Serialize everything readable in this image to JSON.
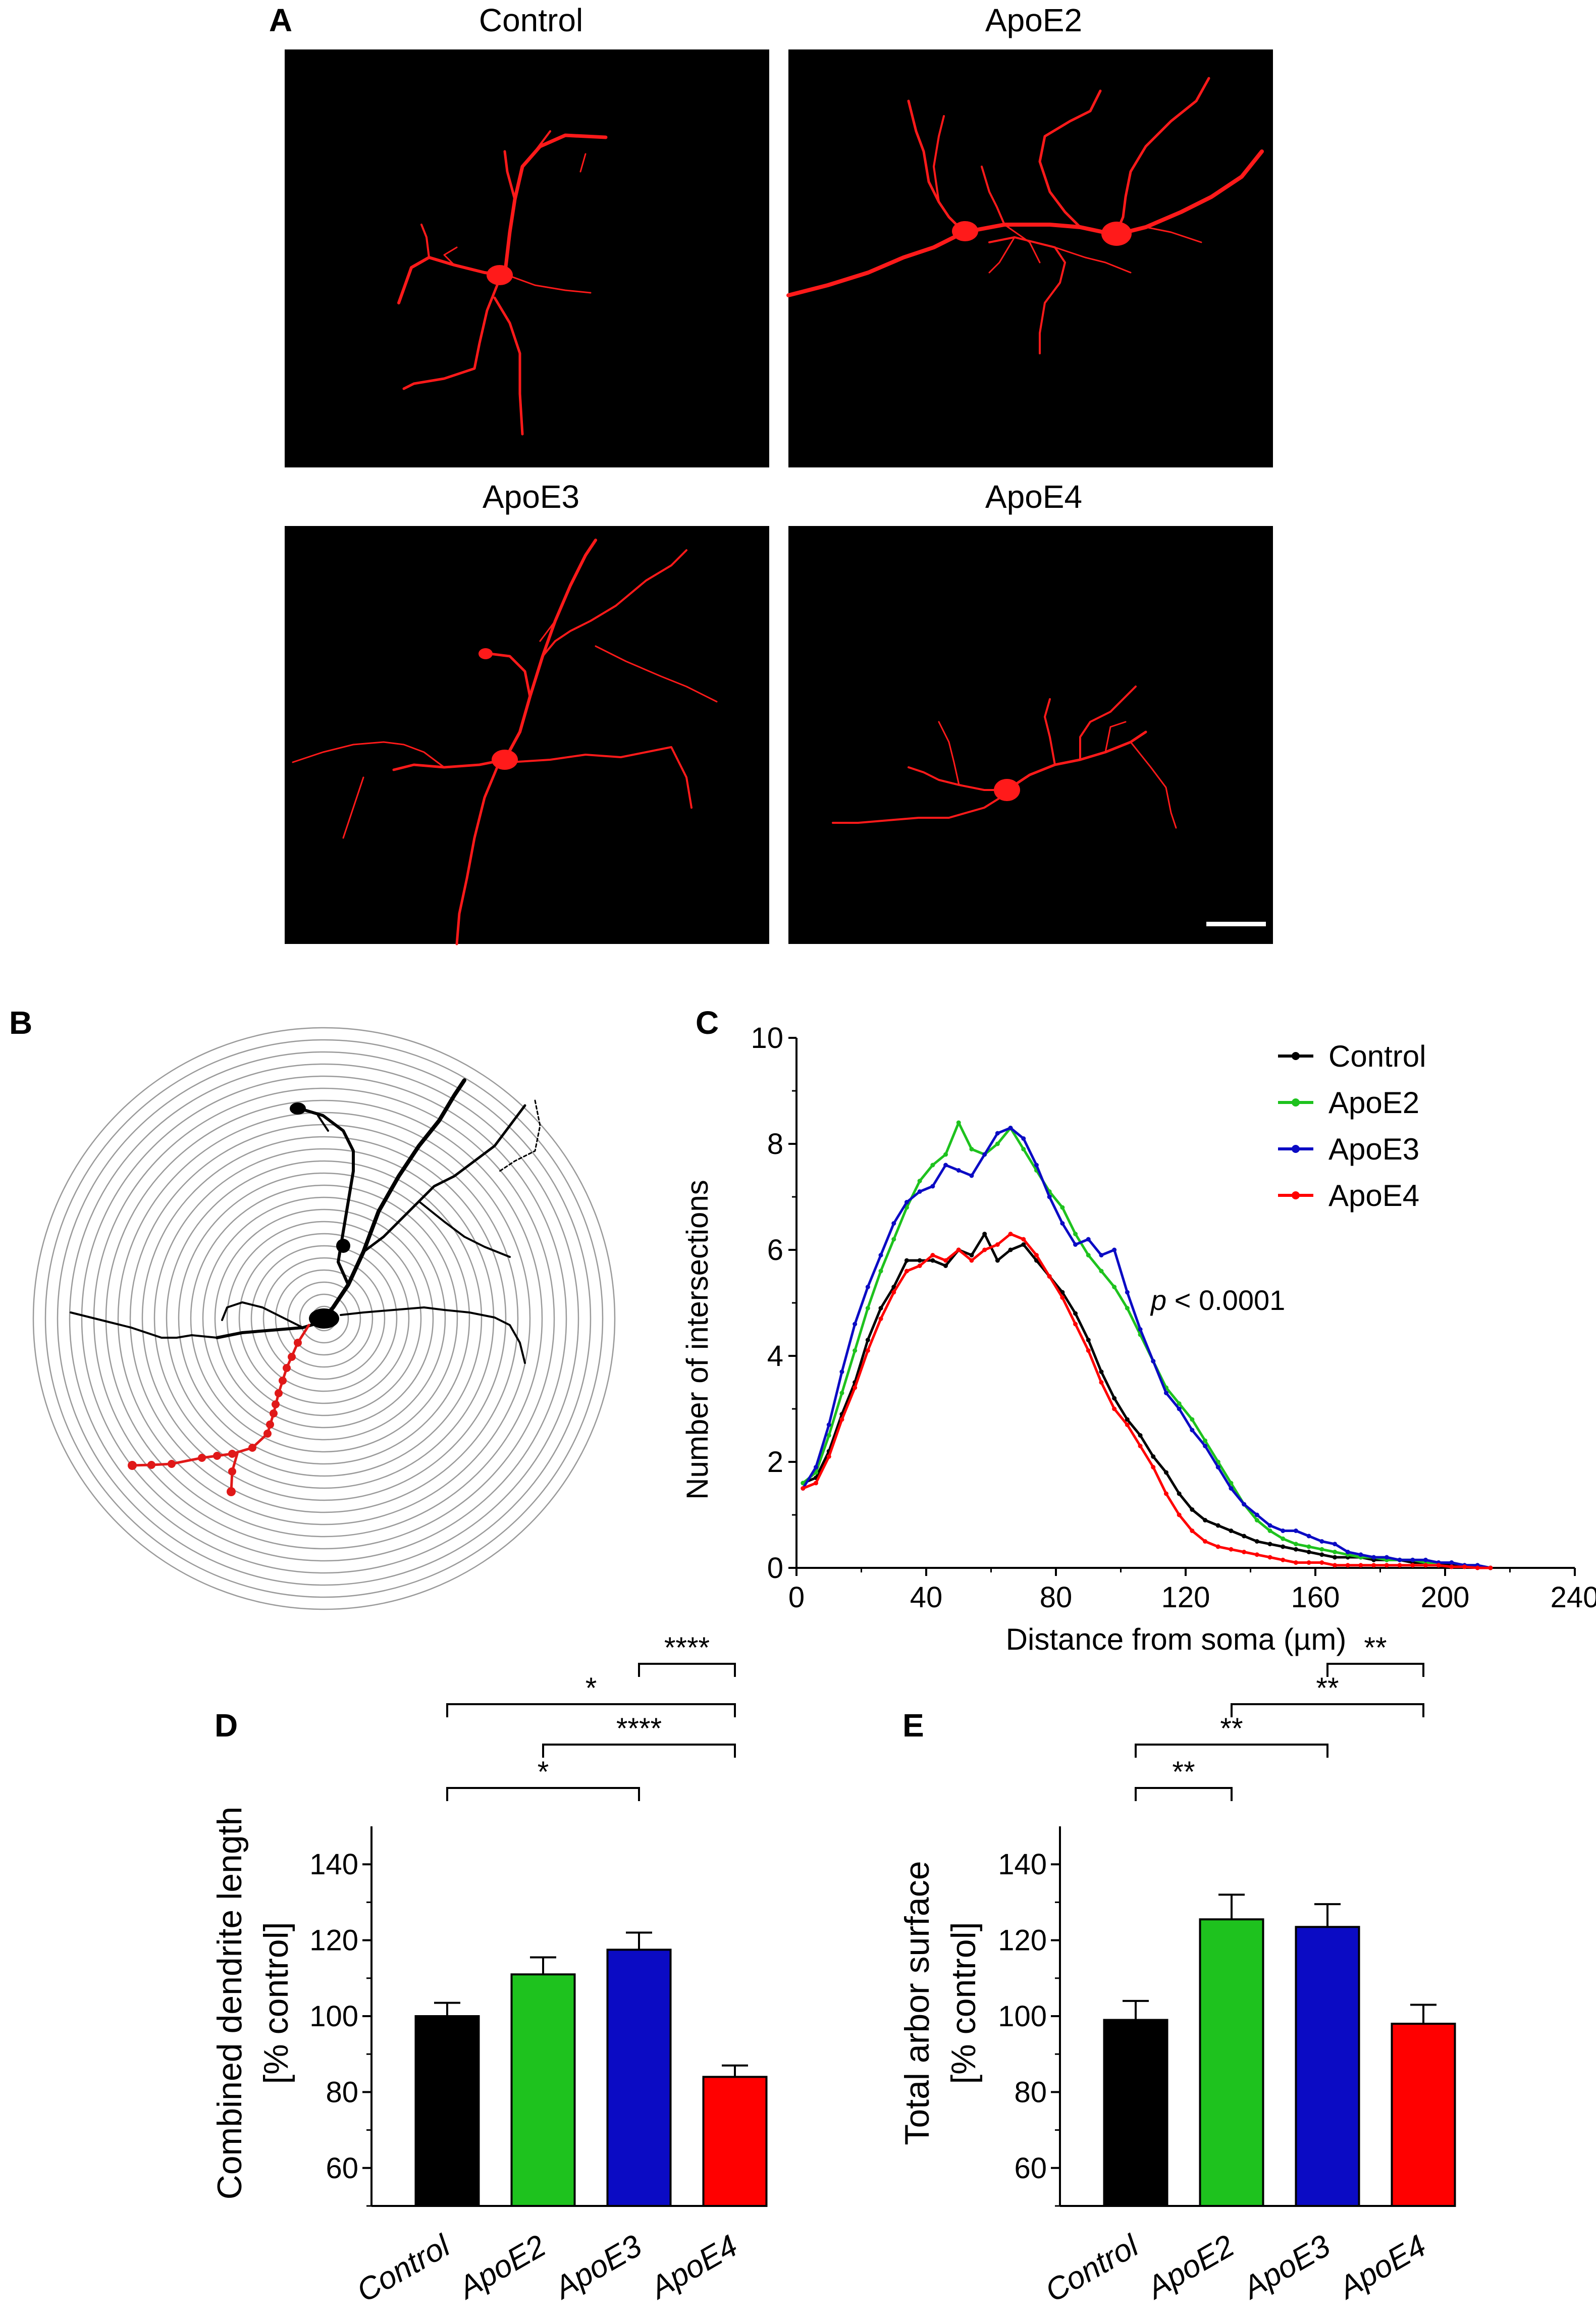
{
  "panels": {
    "A": {
      "letter": "A",
      "titles": [
        "Control",
        "ApoE2",
        "ApoE3",
        "ApoE4"
      ]
    },
    "B": {
      "letter": "B"
    },
    "C": {
      "letter": "C"
    },
    "D": {
      "letter": "D"
    },
    "E": {
      "letter": "E"
    }
  },
  "colors": {
    "control": "#000000",
    "apoe2": "#1ec21e",
    "apoe3": "#0b0bc4",
    "apoe4": "#ff0000",
    "neuron": "#ff1a1a",
    "trace_red": "#e01818",
    "ring": "#9a9a9a"
  },
  "chart_data": [
    {
      "panel": "C",
      "type": "line",
      "xlabel": "Distance from soma (µm)",
      "ylabel": "Number of intersections",
      "xlim": [
        0,
        240
      ],
      "ylim": [
        0,
        10
      ],
      "xticks": [
        0,
        40,
        80,
        120,
        160,
        200,
        240
      ],
      "yticks": [
        0,
        2,
        4,
        6,
        8,
        10
      ],
      "annotation": {
        "italic": "p",
        "rest": " < 0.0001"
      },
      "legend_position": "top-right",
      "series": [
        {
          "name": "Control",
          "color": "#000000",
          "x": [
            2,
            6,
            10,
            14,
            18,
            22,
            26,
            30,
            34,
            38,
            42,
            46,
            50,
            54,
            58,
            62,
            66,
            70,
            74,
            78,
            82,
            86,
            90,
            94,
            98,
            102,
            106,
            110,
            114,
            118,
            122,
            126,
            130,
            134,
            138,
            142,
            146,
            150,
            154,
            158,
            162,
            166,
            170,
            174,
            178,
            182,
            186,
            190,
            194,
            198,
            202,
            206,
            210,
            214
          ],
          "y": [
            1.6,
            1.7,
            2.2,
            2.9,
            3.5,
            4.3,
            4.9,
            5.3,
            5.8,
            5.8,
            5.8,
            5.7,
            6.0,
            5.9,
            6.3,
            5.8,
            6.0,
            6.1,
            5.8,
            5.5,
            5.2,
            4.8,
            4.3,
            3.7,
            3.2,
            2.8,
            2.5,
            2.1,
            1.8,
            1.4,
            1.1,
            0.9,
            0.8,
            0.7,
            0.6,
            0.5,
            0.45,
            0.4,
            0.35,
            0.3,
            0.25,
            0.2,
            0.2,
            0.2,
            0.15,
            0.15,
            0.15,
            0.1,
            0.1,
            0.1,
            0.05,
            0.05,
            0.02,
            0.0
          ]
        },
        {
          "name": "ApoE2",
          "color": "#1ec21e",
          "x": [
            2,
            6,
            10,
            14,
            18,
            22,
            26,
            30,
            34,
            38,
            42,
            46,
            50,
            54,
            58,
            62,
            66,
            70,
            74,
            78,
            82,
            86,
            90,
            94,
            98,
            102,
            106,
            110,
            114,
            118,
            122,
            126,
            130,
            134,
            138,
            142,
            146,
            150,
            154,
            158,
            162,
            166,
            170,
            174,
            178,
            182,
            186,
            190,
            194,
            198,
            202,
            206,
            210,
            214
          ],
          "y": [
            1.6,
            1.8,
            2.5,
            3.3,
            4.1,
            4.9,
            5.6,
            6.2,
            6.8,
            7.3,
            7.6,
            7.8,
            8.4,
            7.9,
            7.8,
            8.0,
            8.3,
            7.9,
            7.5,
            7.1,
            6.8,
            6.3,
            5.9,
            5.6,
            5.3,
            4.9,
            4.4,
            3.9,
            3.4,
            3.1,
            2.8,
            2.4,
            2.0,
            1.6,
            1.2,
            0.9,
            0.7,
            0.55,
            0.45,
            0.4,
            0.35,
            0.3,
            0.25,
            0.2,
            0.2,
            0.15,
            0.15,
            0.15,
            0.1,
            0.1,
            0.1,
            0.05,
            0.05,
            0.0
          ]
        },
        {
          "name": "ApoE3",
          "color": "#0b0bc4",
          "x": [
            2,
            6,
            10,
            14,
            18,
            22,
            26,
            30,
            34,
            38,
            42,
            46,
            50,
            54,
            58,
            62,
            66,
            70,
            74,
            78,
            82,
            86,
            90,
            94,
            98,
            102,
            106,
            110,
            114,
            118,
            122,
            126,
            130,
            134,
            138,
            142,
            146,
            150,
            154,
            158,
            162,
            166,
            170,
            174,
            178,
            182,
            186,
            190,
            194,
            198,
            202,
            206,
            210,
            214
          ],
          "y": [
            1.5,
            1.9,
            2.7,
            3.7,
            4.6,
            5.3,
            5.9,
            6.5,
            6.9,
            7.1,
            7.2,
            7.6,
            7.5,
            7.4,
            7.8,
            8.2,
            8.3,
            8.1,
            7.6,
            7.0,
            6.5,
            6.1,
            6.2,
            5.9,
            6.0,
            5.2,
            4.5,
            3.9,
            3.3,
            3.0,
            2.6,
            2.3,
            1.9,
            1.5,
            1.2,
            1.0,
            0.8,
            0.7,
            0.7,
            0.6,
            0.5,
            0.45,
            0.3,
            0.25,
            0.2,
            0.2,
            0.15,
            0.15,
            0.15,
            0.1,
            0.1,
            0.05,
            0.05,
            0.0
          ]
        },
        {
          "name": "ApoE4",
          "color": "#ff0000",
          "x": [
            2,
            6,
            10,
            14,
            18,
            22,
            26,
            30,
            34,
            38,
            42,
            46,
            50,
            54,
            58,
            62,
            66,
            70,
            74,
            78,
            82,
            86,
            90,
            94,
            98,
            102,
            106,
            110,
            114,
            118,
            122,
            126,
            130,
            134,
            138,
            142,
            146,
            150,
            154,
            158,
            162,
            166,
            170,
            174,
            178,
            182,
            186,
            190,
            194,
            198,
            202,
            206,
            210,
            214
          ],
          "y": [
            1.5,
            1.6,
            2.1,
            2.8,
            3.4,
            4.1,
            4.7,
            5.2,
            5.6,
            5.7,
            5.9,
            5.8,
            6.0,
            5.8,
            6.0,
            6.1,
            6.3,
            6.2,
            5.9,
            5.5,
            5.1,
            4.6,
            4.1,
            3.5,
            3.0,
            2.7,
            2.3,
            1.9,
            1.4,
            1.0,
            0.7,
            0.5,
            0.4,
            0.35,
            0.3,
            0.25,
            0.2,
            0.15,
            0.1,
            0.1,
            0.1,
            0.05,
            0.05,
            0.05,
            0.05,
            0.05,
            0.05,
            0.05,
            0.05,
            0.05,
            0.02,
            0.02,
            0.0,
            0.0
          ]
        }
      ]
    },
    {
      "panel": "D",
      "type": "bar",
      "categories": [
        "Control",
        "ApoE2",
        "ApoE3",
        "ApoE4"
      ],
      "values": [
        100,
        111,
        117.5,
        84
      ],
      "errors": [
        3.5,
        4.5,
        4.5,
        3
      ],
      "colors": [
        "#000000",
        "#1ec21e",
        "#0b0bc4",
        "#ff0000"
      ],
      "ylabel_lines": [
        "Combined dendrite length",
        "[% control]"
      ],
      "ylim": [
        50,
        150
      ],
      "yticks": [
        60,
        80,
        100,
        120,
        140
      ],
      "brackets": [
        {
          "from": 0,
          "to": 2,
          "label": "*",
          "tier": 0
        },
        {
          "from": 1,
          "to": 3,
          "label": "****",
          "tier": 1
        },
        {
          "from": 0,
          "to": 3,
          "label": "*",
          "tier": 2
        },
        {
          "from": 2,
          "to": 3,
          "label": "****",
          "tier": 3
        }
      ]
    },
    {
      "panel": "E",
      "type": "bar",
      "categories": [
        "Control",
        "ApoE2",
        "ApoE3",
        "ApoE4"
      ],
      "values": [
        99,
        125.5,
        123.5,
        98
      ],
      "errors": [
        5,
        6.5,
        6,
        5
      ],
      "colors": [
        "#000000",
        "#1ec21e",
        "#0b0bc4",
        "#ff0000"
      ],
      "ylabel_lines": [
        "Total  arbor surface",
        "[% control]"
      ],
      "ylim": [
        50,
        150
      ],
      "yticks": [
        60,
        80,
        100,
        120,
        140
      ],
      "brackets": [
        {
          "from": 0,
          "to": 1,
          "label": "**",
          "tier": 0
        },
        {
          "from": 0,
          "to": 2,
          "label": "**",
          "tier": 1
        },
        {
          "from": 1,
          "to": 3,
          "label": "**",
          "tier": 2
        },
        {
          "from": 2,
          "to": 3,
          "label": "**",
          "tier": 3
        }
      ]
    }
  ]
}
